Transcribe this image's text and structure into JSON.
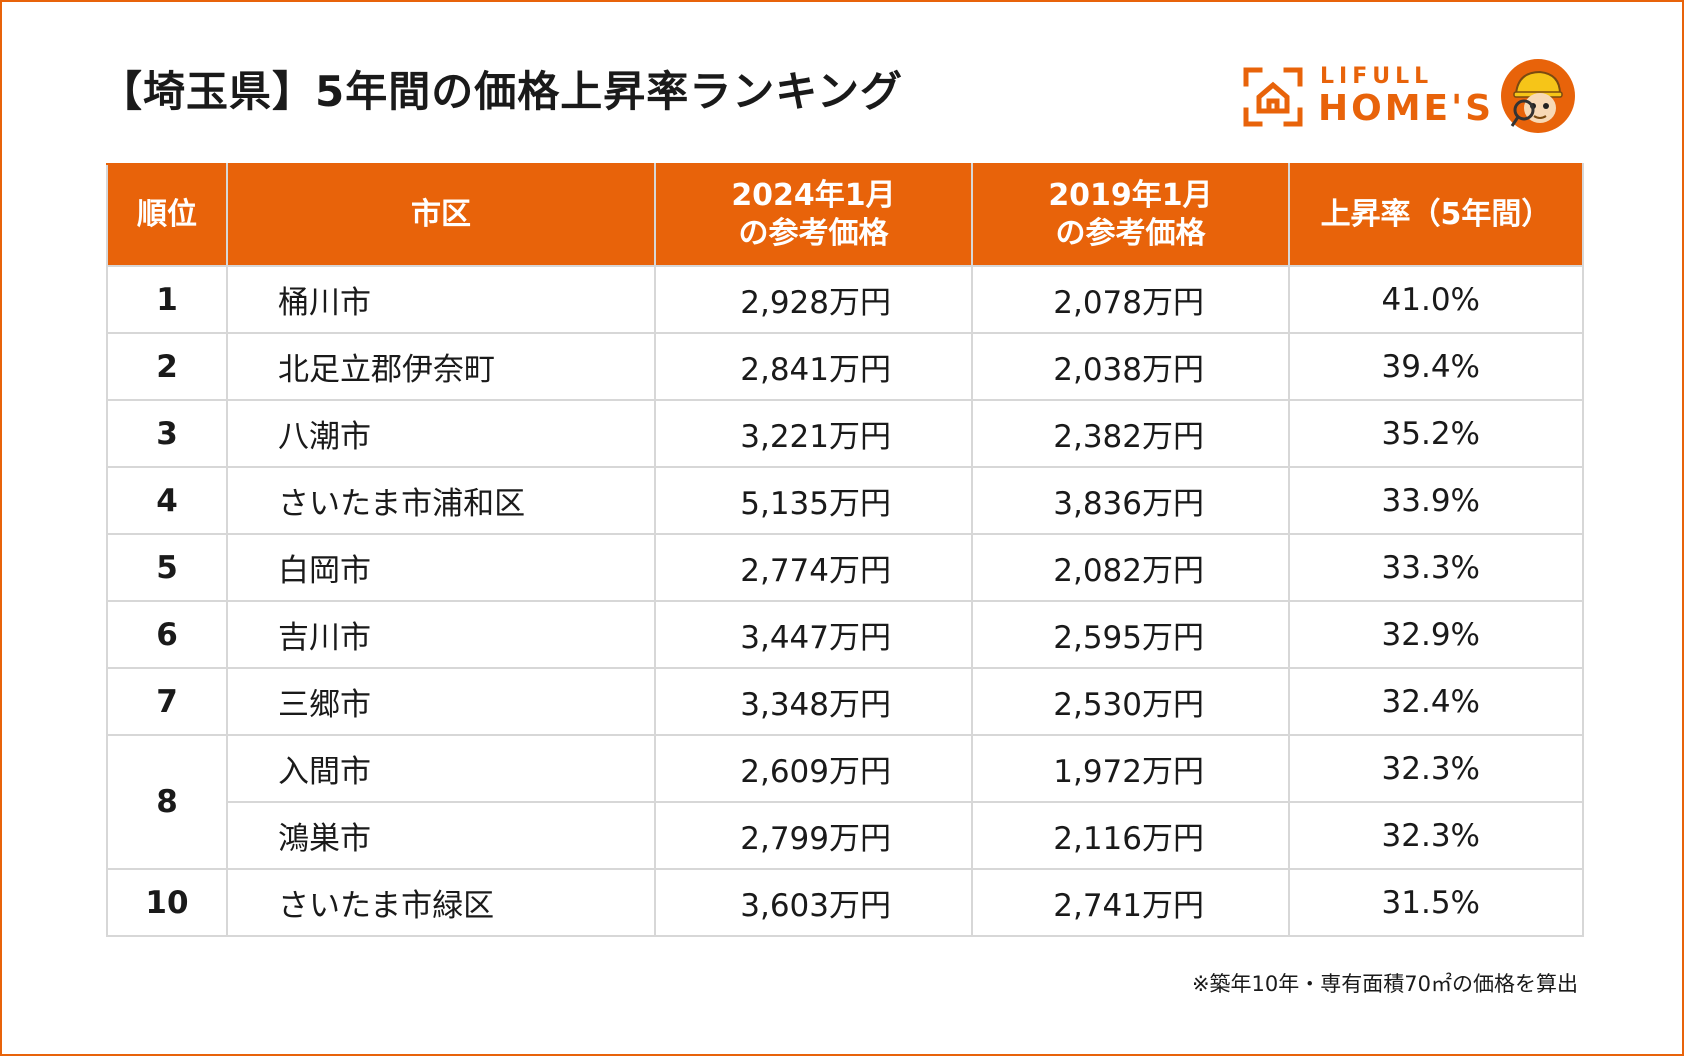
{
  "title": "【埼玉県】5年間の価格上昇率ランキング",
  "logo": {
    "top": "LIFULL",
    "main": "HOME'S"
  },
  "brand_color": "#e8630a",
  "table": {
    "headers": {
      "rank": "順位",
      "city": "市区",
      "price_2024_line1": "2024年1月",
      "price_2024_line2": "の参考価格",
      "price_2019_line1": "2019年1月",
      "price_2019_line2": "の参考価格",
      "rate": "上昇率（5年間）"
    },
    "rows": [
      {
        "rank": "1",
        "city": "桶川市",
        "price_2024": "2,928万円",
        "price_2019": "2,078万円",
        "rate": "41.0%"
      },
      {
        "rank": "2",
        "city": "北足立郡伊奈町",
        "price_2024": "2,841万円",
        "price_2019": "2,038万円",
        "rate": "39.4%"
      },
      {
        "rank": "3",
        "city": "八潮市",
        "price_2024": "3,221万円",
        "price_2019": "2,382万円",
        "rate": "35.2%"
      },
      {
        "rank": "4",
        "city": "さいたま市浦和区",
        "price_2024": "5,135万円",
        "price_2019": "3,836万円",
        "rate": "33.9%"
      },
      {
        "rank": "5",
        "city": "白岡市",
        "price_2024": "2,774万円",
        "price_2019": "2,082万円",
        "rate": "33.3%"
      },
      {
        "rank": "6",
        "city": "吉川市",
        "price_2024": "3,447万円",
        "price_2019": "2,595万円",
        "rate": "32.9%"
      },
      {
        "rank": "7",
        "city": "三郷市",
        "price_2024": "3,348万円",
        "price_2019": "2,530万円",
        "rate": "32.4%"
      },
      {
        "rank": "8",
        "city": "入間市",
        "price_2024": "2,609万円",
        "price_2019": "1,972万円",
        "rate": "32.3%"
      },
      {
        "rank": "8",
        "city": "鴻巣市",
        "price_2024": "2,799万円",
        "price_2019": "2,116万円",
        "rate": "32.3%"
      },
      {
        "rank": "10",
        "city": "さいたま市緑区",
        "price_2024": "3,603万円",
        "price_2019": "2,741万円",
        "rate": "31.5%"
      }
    ]
  },
  "footnote": "※築年10年・専有面積70㎡の価格を算出"
}
